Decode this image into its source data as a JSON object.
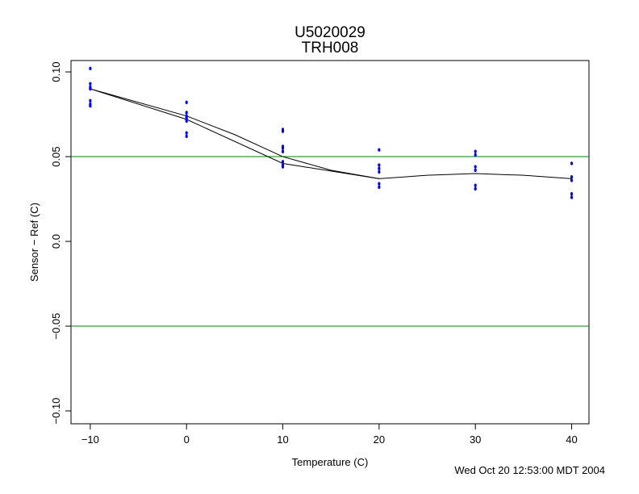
{
  "chart_data": {
    "type": "scatter",
    "title": "U5020029",
    "subtitle": "TRH008",
    "x_label": "Temperature (C)",
    "y_label": "Sensor − Ref (C)",
    "footer": "Wed Oct 20 12:53:00 MDT 2004",
    "xlim": [
      -12,
      41.8
    ],
    "ylim": [
      -0.1076,
      0.1067
    ],
    "xticks": [
      {
        "value": -10,
        "label": "−10"
      },
      0,
      10,
      20,
      30,
      40
    ],
    "yticks": [
      {
        "value": -0.1,
        "label": "−0.10"
      },
      {
        "value": -0.05,
        "label": "−0.05"
      },
      {
        "value": 0,
        "label": "0.0"
      },
      {
        "value": 0.05,
        "label": "0.05"
      },
      {
        "value": 0.1,
        "label": "0.10"
      }
    ],
    "points": {
      "color": "#0000ff",
      "x": [
        -10,
        -10,
        -10,
        -10,
        -10,
        -10,
        -10,
        0,
        0,
        0,
        0,
        0,
        0,
        0,
        0,
        10,
        10,
        10,
        10,
        10,
        10,
        10,
        10,
        20,
        20,
        20,
        20,
        20,
        20,
        30,
        30,
        30,
        30,
        30,
        30,
        40,
        40,
        40,
        40,
        40
      ],
      "y": [
        0.102,
        0.093,
        0.091,
        0.09,
        0.083,
        0.081,
        0.08,
        0.082,
        0.076,
        0.074,
        0.073,
        0.072,
        0.071,
        0.064,
        0.062,
        0.066,
        0.065,
        0.056,
        0.055,
        0.053,
        0.047,
        0.045,
        0.044,
        0.054,
        0.045,
        0.043,
        0.041,
        0.034,
        0.032,
        0.053,
        0.051,
        0.044,
        0.042,
        0.033,
        0.031,
        0.046,
        0.038,
        0.036,
        0.028,
        0.026
      ]
    },
    "lines": [
      {
        "color": "#000000",
        "x": [
          -10,
          0,
          5,
          10,
          15,
          20,
          25,
          30,
          35,
          40
        ],
        "y": [
          0.09,
          0.074,
          0.063,
          0.05,
          0.042,
          0.037,
          0.039,
          0.04,
          0.039,
          0.037
        ]
      },
      {
        "color": "#000000",
        "x": [
          -10,
          0,
          10,
          20
        ],
        "y": [
          0.09,
          0.072,
          0.046,
          0.037
        ]
      }
    ],
    "reference_lines": {
      "color": "#008000",
      "values": [
        0.05,
        -0.05
      ]
    }
  }
}
